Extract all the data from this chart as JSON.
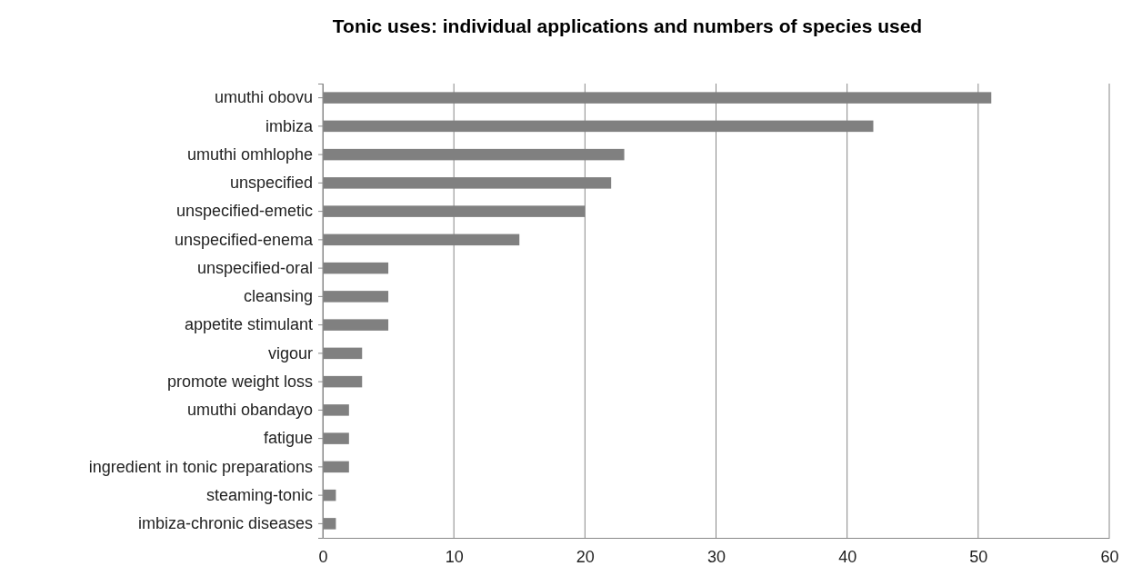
{
  "chart_data": {
    "type": "bar",
    "orientation": "horizontal",
    "title": "Tonic uses: individual applications and numbers of species used",
    "categories": [
      "umuthi obovu",
      "imbiza",
      "umuthi omhlophe",
      "unspecified",
      "unspecified-emetic",
      "unspecified-enema",
      "unspecified-oral",
      "cleansing",
      "appetite stimulant",
      "vigour",
      "promote weight loss",
      "umuthi obandayo",
      "fatigue",
      "ingredient in tonic preparations",
      "steaming-tonic",
      "imbiza-chronic diseases"
    ],
    "values": [
      51,
      42,
      23,
      22,
      20,
      15,
      5,
      5,
      5,
      3,
      3,
      2,
      2,
      2,
      1,
      1
    ],
    "color": "#808080",
    "xlim": [
      0,
      60
    ],
    "xticks": [
      0,
      10,
      20,
      30,
      40,
      50,
      60
    ],
    "grid": "x"
  }
}
